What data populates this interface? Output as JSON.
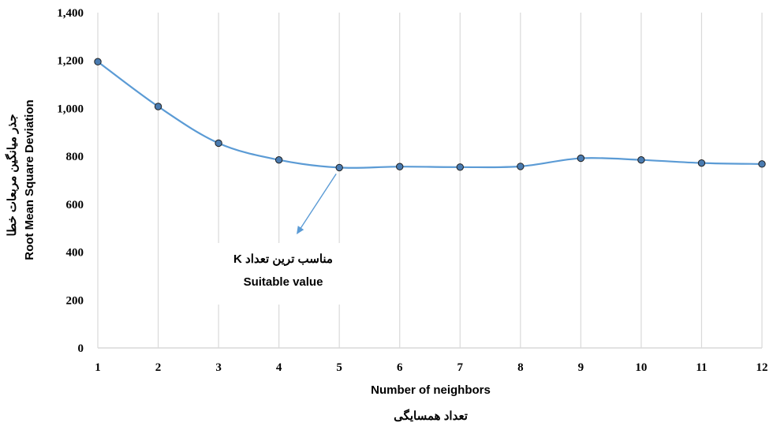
{
  "chart_data": {
    "type": "line",
    "x": [
      1,
      2,
      3,
      4,
      5,
      6,
      7,
      8,
      9,
      10,
      11,
      12
    ],
    "series": [
      {
        "values": [
          1195,
          1008,
          855,
          785,
          753,
          757,
          755,
          758,
          792,
          785,
          772,
          768
        ]
      }
    ],
    "xlabel": "Number of neighbors",
    "xlabel_fa": "تعداد همسایگی",
    "ylabel": "Root Mean Square Deviation",
    "ylabel_fa": "جذر میانگین مربعات خطا",
    "xlim": [
      1,
      12
    ],
    "ylim": [
      0,
      1400
    ],
    "y_ticks": [
      "0",
      "200",
      "400",
      "600",
      "800",
      "1,000",
      "1,200",
      "1,400"
    ],
    "x_ticks": [
      "1",
      "2",
      "3",
      "4",
      "5",
      "6",
      "7",
      "8",
      "9",
      "10",
      "11",
      "12"
    ],
    "grid": "vertical",
    "annotation": {
      "line1": "مناسب ترین تعداد K",
      "line2": "Suitable value",
      "points_to_x": 5
    },
    "colors": {
      "line": "#5b9bd5",
      "marker": "#4a7bb0",
      "grid": "#d9d9d9"
    }
  }
}
